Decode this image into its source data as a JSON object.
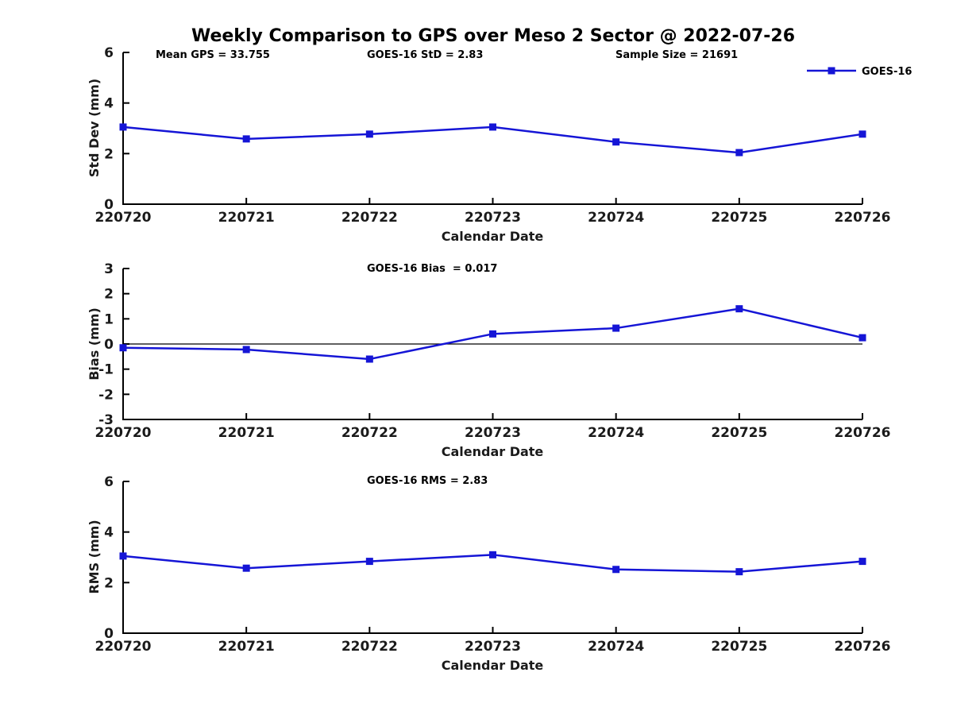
{
  "title": "Weekly Comparison to GPS over Meso 2 Sector @ 2022-07-26",
  "colors": {
    "series": "#1515d6",
    "axes": "#000000",
    "text": "#1a1a1a",
    "zero_line": "#000000",
    "background": "#ffffff"
  },
  "legend": {
    "label": "GOES-16",
    "position": "top-right"
  },
  "chart_data": [
    {
      "type": "line",
      "subplot": "std_dev",
      "annotations": [
        "Mean GPS = 33.755",
        "GOES-16 StD = 2.83",
        "Sample Size = 21691"
      ],
      "x": [
        "220720",
        "220721",
        "220722",
        "220723",
        "220724",
        "220725",
        "220726"
      ],
      "series": [
        {
          "name": "GOES-16",
          "values": [
            3.05,
            2.58,
            2.77,
            3.05,
            2.46,
            2.04,
            2.77
          ]
        }
      ],
      "xlabel": "Calendar Date",
      "ylabel": "Std Dev (mm)",
      "ylim": [
        0,
        6
      ],
      "yticks": [
        0,
        2,
        4,
        6
      ],
      "grid": false,
      "marker": "square",
      "show_legend": true
    },
    {
      "type": "line",
      "subplot": "bias",
      "annotations": [
        "GOES-16 Bias  = 0.017"
      ],
      "x": [
        "220720",
        "220721",
        "220722",
        "220723",
        "220724",
        "220725",
        "220726"
      ],
      "series": [
        {
          "name": "GOES-16",
          "values": [
            -0.15,
            -0.22,
            -0.6,
            0.4,
            0.63,
            1.4,
            0.25
          ]
        }
      ],
      "xlabel": "Calendar Date",
      "ylabel": "Bias (mm)",
      "ylim": [
        -3,
        3
      ],
      "yticks": [
        -3,
        -2,
        -1,
        0,
        1,
        2,
        3
      ],
      "zero_line": true,
      "grid": false,
      "marker": "square",
      "show_legend": false
    },
    {
      "type": "line",
      "subplot": "rms",
      "annotations": [
        "GOES-16 RMS = 2.83"
      ],
      "x": [
        "220720",
        "220721",
        "220722",
        "220723",
        "220724",
        "220725",
        "220726"
      ],
      "series": [
        {
          "name": "GOES-16",
          "values": [
            3.05,
            2.57,
            2.84,
            3.1,
            2.52,
            2.43,
            2.84
          ]
        }
      ],
      "xlabel": "Calendar Date",
      "ylabel": "RMS (mm)",
      "ylim": [
        0,
        6
      ],
      "yticks": [
        0,
        2,
        4,
        6
      ],
      "grid": false,
      "marker": "square",
      "show_legend": false
    }
  ]
}
